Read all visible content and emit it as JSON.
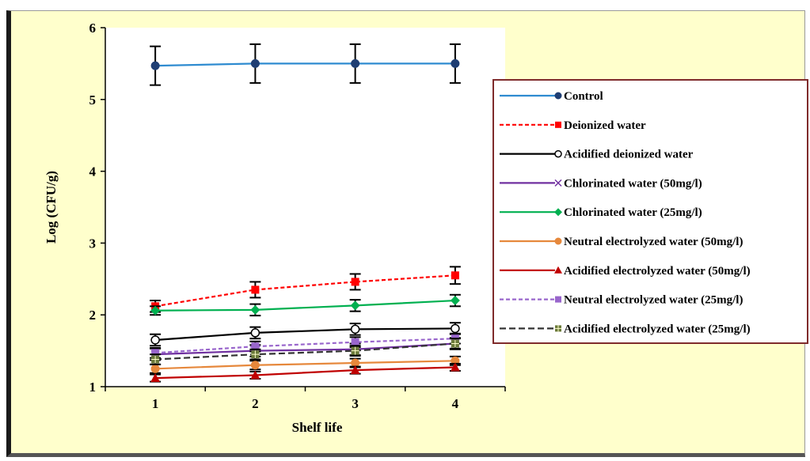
{
  "chart_data": {
    "type": "line",
    "title": "",
    "xlabel": "Shelf life",
    "ylabel": "Log (CFU/g)",
    "x": [
      1,
      2,
      3,
      4
    ],
    "xlim": [
      0.5,
      4.5
    ],
    "ylim": [
      1,
      6
    ],
    "yticks": [
      1,
      2,
      3,
      4,
      5,
      6
    ],
    "grid": false,
    "legend_position": "right",
    "series": [
      {
        "name": "Control",
        "values": [
          5.47,
          5.5,
          5.5,
          5.5
        ],
        "errors": [
          0.27,
          0.27,
          0.27,
          0.27
        ],
        "color": "#2e8bd0",
        "dash": "",
        "marker": "circle",
        "marker_color": "#1f3e73"
      },
      {
        "name": "Deionized water",
        "values": [
          2.12,
          2.35,
          2.46,
          2.55
        ],
        "errors": [
          0.08,
          0.11,
          0.11,
          0.12
        ],
        "color": "#ff0000",
        "dash": "5,3",
        "marker": "square",
        "marker_color": "#ff0000"
      },
      {
        "name": "Acidified deionized water",
        "values": [
          1.65,
          1.75,
          1.8,
          1.81
        ],
        "errors": [
          0.08,
          0.08,
          0.08,
          0.08
        ],
        "color": "#000000",
        "dash": "",
        "marker": "open-circle",
        "marker_color": "#000000"
      },
      {
        "name": "Chlorinated water (50mg/l)",
        "values": [
          1.45,
          1.5,
          1.52,
          1.6
        ],
        "errors": [
          0.08,
          0.08,
          0.08,
          0.08
        ],
        "color": "#7030a0",
        "dash": "",
        "marker": "x",
        "marker_color": "#7030a0"
      },
      {
        "name": "Chlorinated water (25mg/l)",
        "values": [
          2.06,
          2.07,
          2.13,
          2.2
        ],
        "errors": [
          0.06,
          0.08,
          0.08,
          0.08
        ],
        "color": "#00b050",
        "dash": "",
        "marker": "diamond",
        "marker_color": "#00b050"
      },
      {
        "name": "Neutral electrolyzed water (50mg/l)",
        "values": [
          1.25,
          1.3,
          1.33,
          1.36
        ],
        "errors": [
          0.06,
          0.06,
          0.06,
          0.06
        ],
        "color": "#e6883c",
        "dash": "",
        "marker": "circle",
        "marker_color": "#e6883c"
      },
      {
        "name": "Acidified electrolyzed water (50mg/l)",
        "values": [
          1.12,
          1.16,
          1.23,
          1.27
        ],
        "errors": [
          0.05,
          0.05,
          0.05,
          0.05
        ],
        "color": "#c00000",
        "dash": "",
        "marker": "triangle",
        "marker_color": "#c00000"
      },
      {
        "name": "Neutral electrolyzed water (25mg/l)",
        "values": [
          1.47,
          1.56,
          1.62,
          1.67
        ],
        "errors": [
          0.07,
          0.07,
          0.07,
          0.07
        ],
        "color": "#9966cc",
        "dash": "5,3",
        "marker": "square",
        "marker_color": "#9966cc"
      },
      {
        "name": "Acidified electrolyzed water (25mg/l)",
        "values": [
          1.38,
          1.45,
          1.5,
          1.6
        ],
        "errors": [
          0.07,
          0.07,
          0.07,
          0.07
        ],
        "color": "#333333",
        "dash": "8,4",
        "marker": "square-cross",
        "marker_color": "#6b7a3a"
      }
    ]
  }
}
